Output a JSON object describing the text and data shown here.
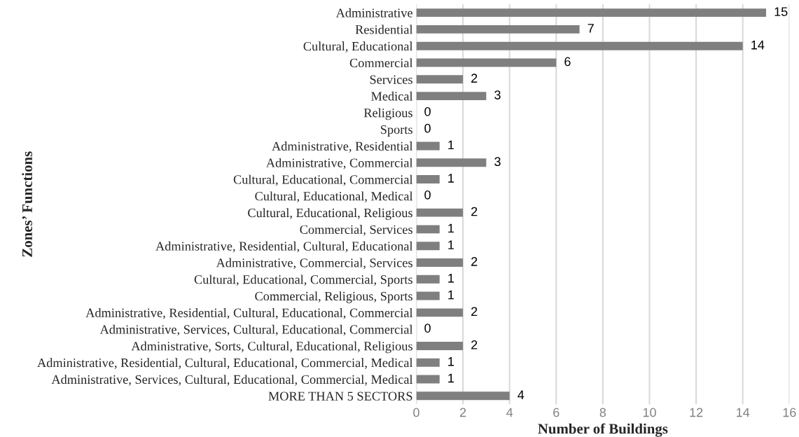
{
  "chart_data": {
    "type": "bar",
    "orientation": "horizontal",
    "xlabel": "Number of Buildings",
    "ylabel": "Zones’ Functions",
    "categories": [
      "Administrative",
      "Residential",
      "Cultural, Educational",
      "Commercial",
      "Services",
      "Medical",
      "Religious",
      "Sports",
      "Administrative, Residential",
      "Administrative, Commercial",
      "Cultural, Educational, Commercial",
      "Cultural, Educational, Medical",
      "Cultural, Educational, Religious",
      "Commercial, Services",
      "Administrative, Residential, Cultural, Educational",
      "Administrative, Commercial, Services",
      "Cultural, Educational, Commercial, Sports",
      "Commercial, Religious, Sports",
      "Administrative, Residential, Cultural, Educational, Commercial",
      "Administrative, Services, Cultural, Educational, Commercial",
      "Administrative, Sorts, Cultural, Educational, Religious",
      "Administrative, Residential, Cultural, Educational, Commercial, Medical",
      "Administrative, Services, Cultural, Educational, Commercial, Medical",
      "MORE THAN 5 SECTORS"
    ],
    "values": [
      15,
      7,
      14,
      6,
      2,
      3,
      0,
      0,
      1,
      3,
      1,
      0,
      2,
      1,
      1,
      2,
      1,
      1,
      2,
      0,
      2,
      1,
      1,
      4
    ],
    "color": "#7f7f7f",
    "xlim": [
      0,
      16
    ],
    "xticks": [
      0,
      2,
      4,
      6,
      8,
      10,
      12,
      14,
      16
    ],
    "grid": "x",
    "data_labels": true
  }
}
